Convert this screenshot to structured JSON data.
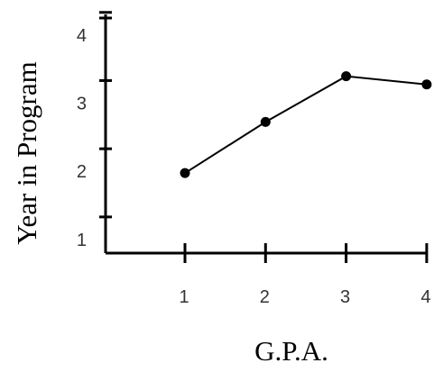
{
  "chart_data": {
    "type": "line",
    "title": "",
    "xlabel": "G.P.A.",
    "ylabel": "Year in Program",
    "x_ticks": [
      "1",
      "2",
      "3",
      "4"
    ],
    "y_ticks": [
      "1",
      "2",
      "3",
      "4"
    ],
    "xlim": [
      0.1,
      4
    ],
    "ylim": [
      0.8,
      4.3
    ],
    "grid": false,
    "legend": "none",
    "line_color": "#000000",
    "series": [
      {
        "x": [
          1,
          2,
          3,
          4
        ],
        "y": [
          2.0,
          2.75,
          3.42,
          3.3
        ]
      }
    ]
  }
}
